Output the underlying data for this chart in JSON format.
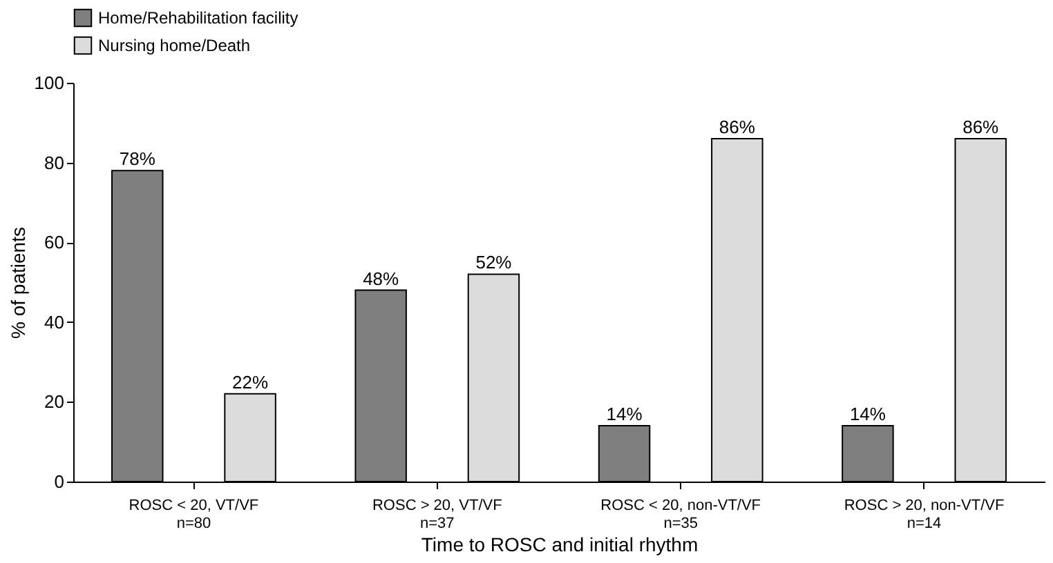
{
  "chart_data": {
    "type": "bar",
    "xlabel": "Time to ROSC and initial rhythm",
    "ylabel": "% of patients",
    "categories": [
      "ROSC < 20, VT/VF\nn=80",
      "ROSC > 20, VT/VF\nn=37",
      "ROSC < 20, non-VT/VF\nn=35",
      "ROSC > 20, non-VT/VF\nn=14"
    ],
    "series": [
      {
        "name": "Home/Rehabilitation facility",
        "color": "#7f7f7f",
        "values": [
          78,
          48,
          14,
          14
        ],
        "value_labels": [
          "78%",
          "48%",
          "14%",
          "14%"
        ]
      },
      {
        "name": "Nursing home/Death",
        "color": "#dcdcdc",
        "values": [
          22,
          52,
          86,
          86
        ],
        "value_labels": [
          "22%",
          "52%",
          "86%",
          "86%"
        ]
      }
    ],
    "ylim": [
      0,
      100
    ],
    "yticks": [
      0,
      20,
      40,
      60,
      80,
      100
    ],
    "grid": false,
    "legend": "top left"
  }
}
